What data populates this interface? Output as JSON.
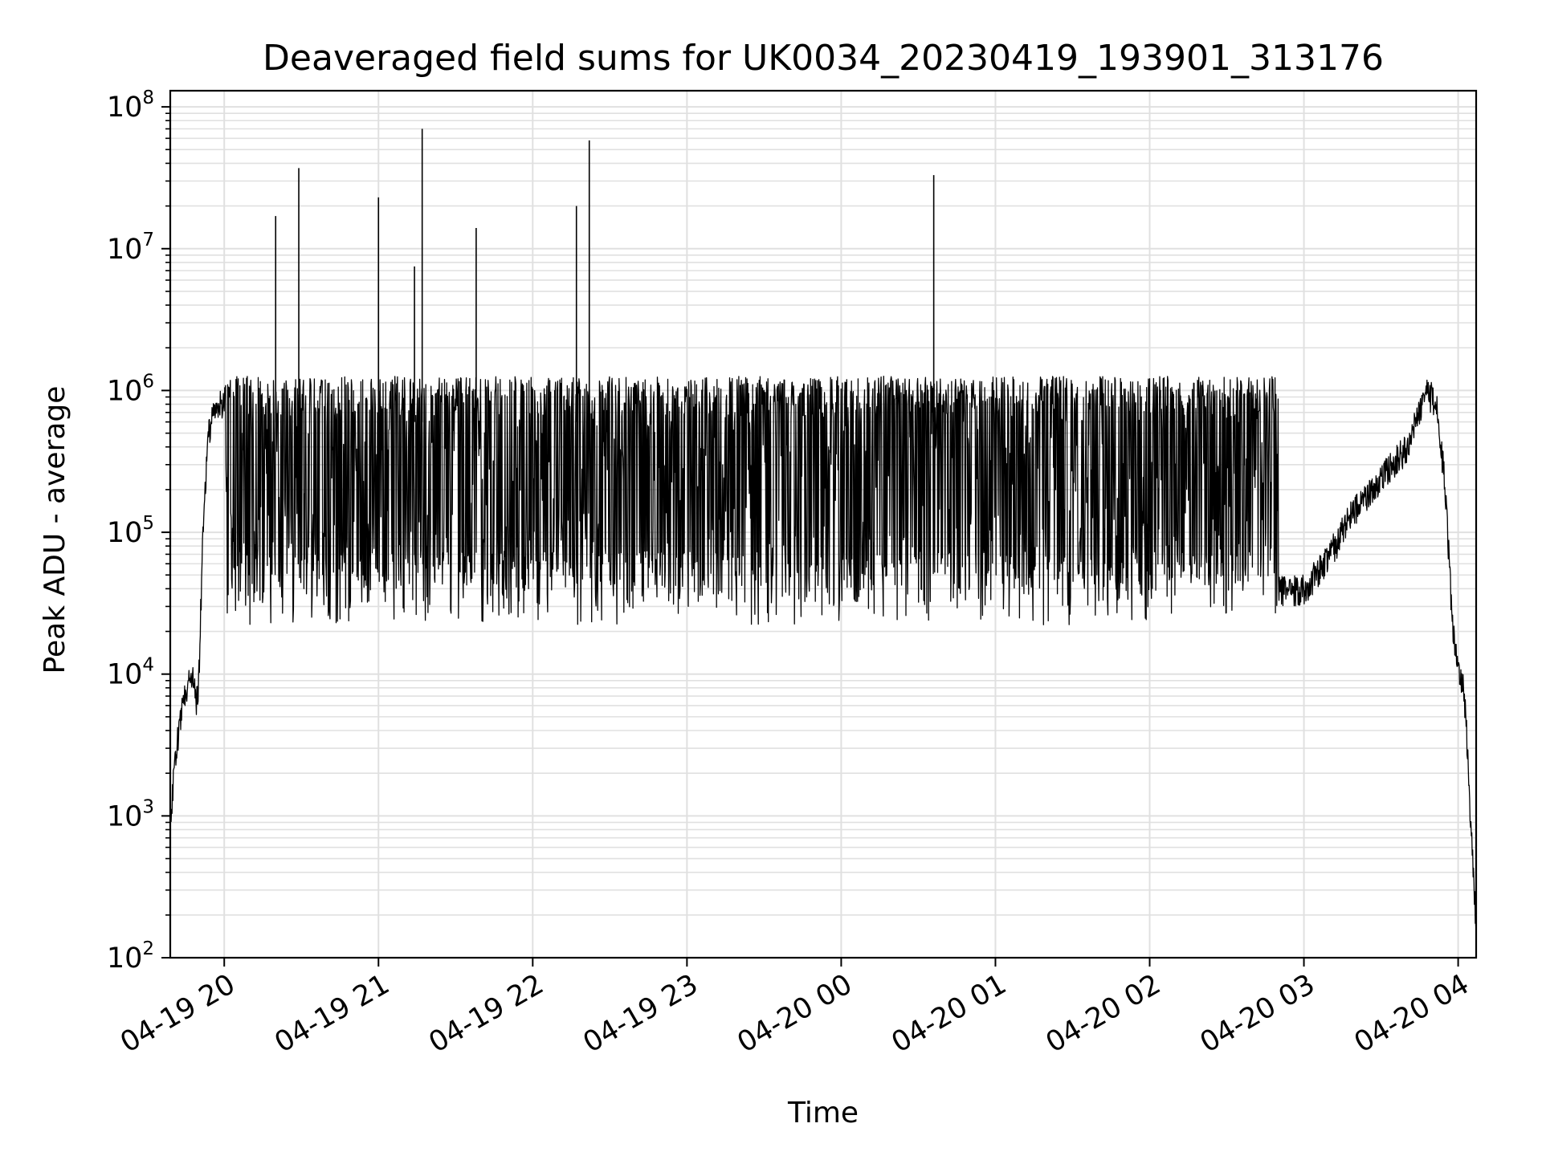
{
  "chart_data": {
    "type": "line",
    "title": "Deaveraged field sums for UK0034_20230419_193901_313176",
    "xlabel": "Time",
    "ylabel": "Peak ADU - average",
    "yscale": "log",
    "ylim": [
      100,
      130000000
    ],
    "xlim": [
      "2023-04-19 19:39",
      "2023-04-20 04:07"
    ],
    "grid": true,
    "legend": "none",
    "line_color": "#000000",
    "grid_color": "#e0e0e0",
    "x_ticks": [
      {
        "t": "2023-04-19 20:00",
        "label": "04-19 20"
      },
      {
        "t": "2023-04-19 21:00",
        "label": "04-19 21"
      },
      {
        "t": "2023-04-19 22:00",
        "label": "04-19 22"
      },
      {
        "t": "2023-04-19 23:00",
        "label": "04-19 23"
      },
      {
        "t": "2023-04-20 00:00",
        "label": "04-20 00"
      },
      {
        "t": "2023-04-20 01:00",
        "label": "04-20 01"
      },
      {
        "t": "2023-04-20 02:00",
        "label": "04-20 02"
      },
      {
        "t": "2023-04-20 03:00",
        "label": "04-20 03"
      },
      {
        "t": "2023-04-20 04:00",
        "label": "04-20 04"
      }
    ],
    "y_ticks": [
      {
        "value": 100,
        "base": "10",
        "exp": "2"
      },
      {
        "value": 1000,
        "base": "10",
        "exp": "3"
      },
      {
        "value": 10000,
        "base": "10",
        "exp": "4"
      },
      {
        "value": 100000,
        "base": "10",
        "exp": "5"
      },
      {
        "value": 1000000,
        "base": "10",
        "exp": "6"
      },
      {
        "value": 10000000,
        "base": "10",
        "exp": "7"
      },
      {
        "value": 100000000,
        "base": "10",
        "exp": "8"
      }
    ],
    "series": [
      {
        "x": [
          "2023-04-19 19:39",
          "2023-04-19 19:41",
          "2023-04-19 19:43",
          "2023-04-19 19:45",
          "2023-04-19 19:46",
          "2023-04-19 19:47",
          "2023-04-19 19:48",
          "2023-04-19 19:49",
          "2023-04-19 19:50",
          "2023-04-19 19:52",
          "2023-04-19 19:54",
          "2023-04-19 19:56",
          "2023-04-19 19:58",
          "2023-04-19 20:00",
          "2023-04-19 20:05",
          "2023-04-19 20:10",
          "2023-04-19 20:15",
          "2023-04-19 20:20",
          "2023-04-19 20:25",
          "2023-04-19 20:30",
          "2023-04-19 20:40",
          "2023-04-19 20:50",
          "2023-04-19 21:00",
          "2023-04-19 21:10",
          "2023-04-19 21:20",
          "2023-04-19 21:30",
          "2023-04-19 21:40",
          "2023-04-19 21:50",
          "2023-04-19 22:00",
          "2023-04-19 22:20",
          "2023-04-19 22:40",
          "2023-04-19 23:00",
          "2023-04-19 23:20",
          "2023-04-19 23:40",
          "2023-04-20 00:00",
          "2023-04-20 00:20",
          "2023-04-20 00:40",
          "2023-04-20 01:00",
          "2023-04-20 01:20",
          "2023-04-20 01:40",
          "2023-04-20 02:00",
          "2023-04-20 02:20",
          "2023-04-20 02:40",
          "2023-04-20 02:50",
          "2023-04-20 03:00",
          "2023-04-20 03:10",
          "2023-04-20 03:20",
          "2023-04-20 03:30",
          "2023-04-20 03:40",
          "2023-04-20 03:48",
          "2023-04-20 03:52",
          "2023-04-20 03:55",
          "2023-04-20 03:58",
          "2023-04-20 04:00",
          "2023-04-20 04:02",
          "2023-04-20 04:03",
          "2023-04-20 04:04",
          "2023-04-20 04:05",
          "2023-04-20 04:06",
          "2023-04-20 04:07"
        ],
        "y": [
          1000,
          2500,
          5000,
          8000,
          9000,
          8500,
          10000,
          6000,
          8000,
          150000,
          500000,
          750000,
          800000,
          800000,
          700000,
          600000,
          700000,
          800000,
          800000,
          700000,
          400000,
          300000,
          350000,
          300000,
          300000,
          300000,
          250000,
          250000,
          250000,
          220000,
          220000,
          220000,
          200000,
          200000,
          200000,
          200000,
          200000,
          200000,
          180000,
          180000,
          180000,
          180000,
          150000,
          40000,
          40000,
          70000,
          150000,
          250000,
          400000,
          1000000,
          800000,
          200000,
          20000,
          10000,
          8000,
          5000,
          2000,
          800,
          400,
          150
        ],
        "spikes": [
          {
            "t": "2023-04-19 20:20",
            "y": 17000000
          },
          {
            "t": "2023-04-19 20:29",
            "y": 37000000
          },
          {
            "t": "2023-04-19 21:00",
            "y": 23000000
          },
          {
            "t": "2023-04-19 21:14",
            "y": 7500000
          },
          {
            "t": "2023-04-19 21:17",
            "y": 70000000
          },
          {
            "t": "2023-04-19 21:38",
            "y": 14000000
          },
          {
            "t": "2023-04-19 22:17",
            "y": 20000000
          },
          {
            "t": "2023-04-19 22:22",
            "y": 58000000
          },
          {
            "t": "2023-04-20 00:36",
            "y": 33000000
          }
        ],
        "envelope": {
          "upper_typical": 1200000,
          "lower_typical": 40000,
          "lower_min": 16000,
          "noisy_range": [
            "2023-04-19 20:00",
            "2023-04-20 02:50"
          ]
        }
      }
    ]
  }
}
